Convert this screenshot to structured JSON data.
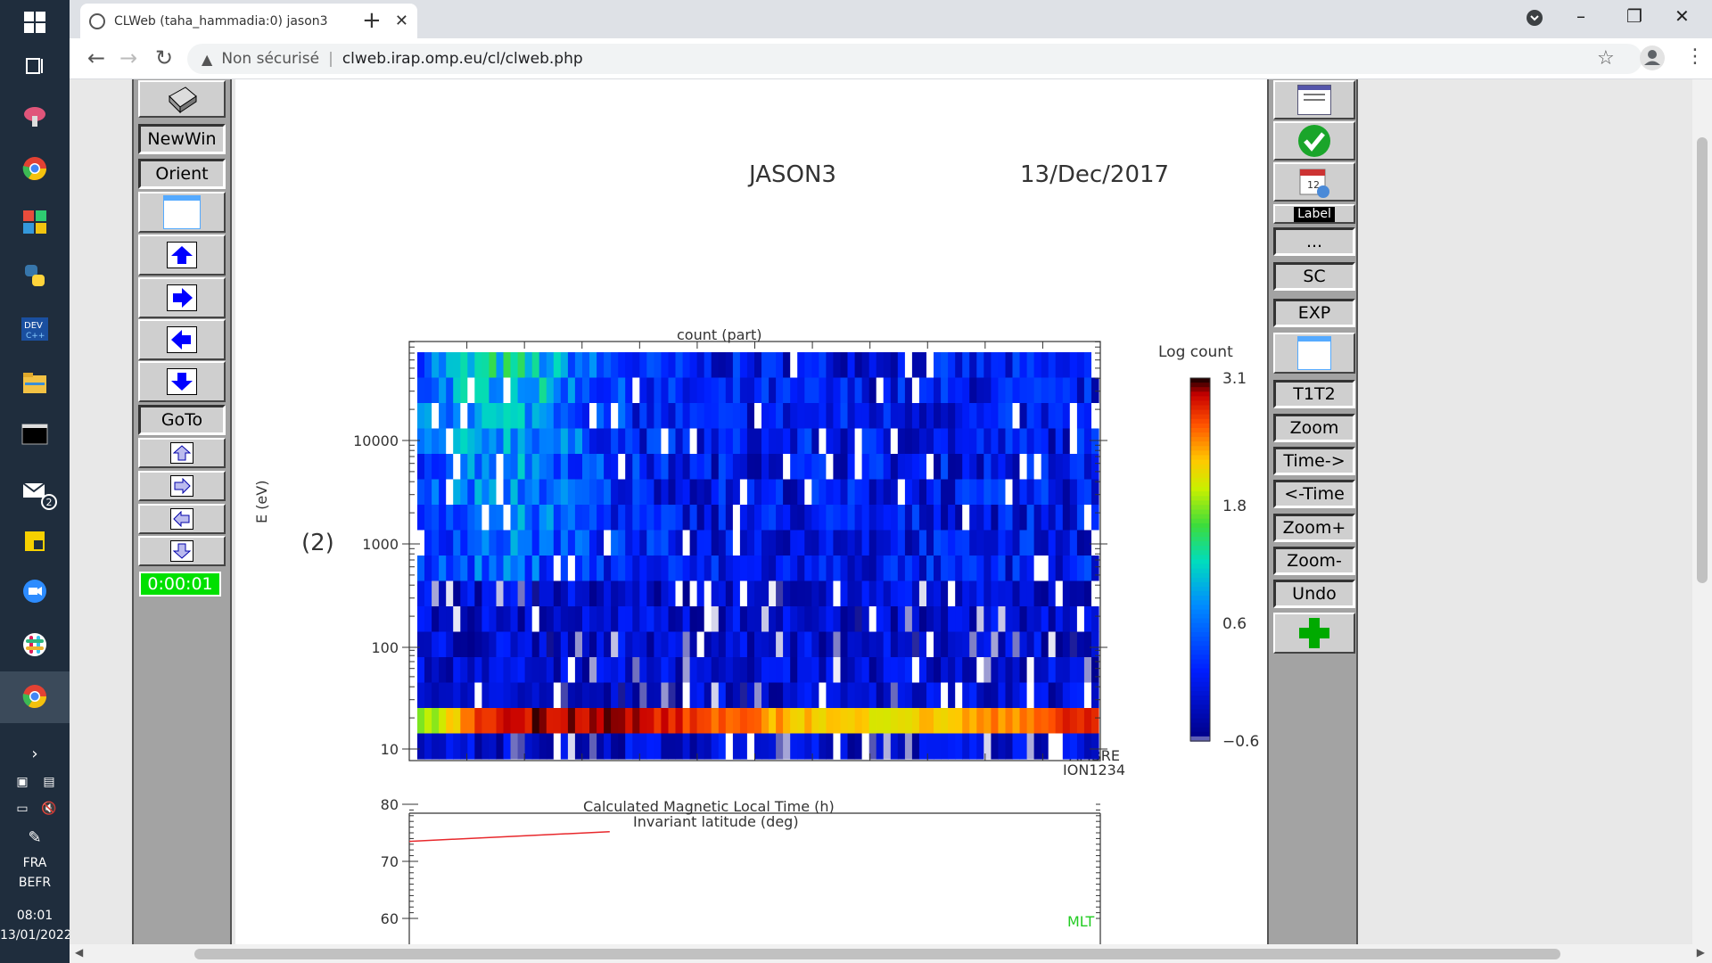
{
  "browser": {
    "tab_title": "CLWeb (taha_hammadia:0) jason3",
    "security_label": "Non sécurisé",
    "url": "clweb.irap.omp.eu/cl/clweb.php"
  },
  "taskbar": {
    "tray_lang": "FRA",
    "tray_layout": "BEFR",
    "time": "08:01",
    "date": "13/01/2022",
    "mail_badge": "2"
  },
  "left_panel": {
    "newwin_label": "NewWin",
    "orient_label": "Orient",
    "goto_label": "GoTo",
    "timer": "0:00:01"
  },
  "right_panel": {
    "label_label": "Label",
    "dots_label": "...",
    "sc_label": "SC",
    "exp_label": "EXP",
    "t1t2_label": "T1T2",
    "zoom_label": "Zoom",
    "time_fwd_label": "Time->",
    "time_back_label": "<-Time",
    "zoom_plus_label": "Zoom+",
    "zoom_minus_label": "Zoom-",
    "undo_label": "Undo"
  },
  "plot": {
    "mission": "JASON3",
    "date": "13/Dec/2017",
    "panel_title": "count (part)",
    "y_label": "E (eV)",
    "panel_index": "(2)",
    "instrument_line1": "AMBRE",
    "instrument_line2": "ION1234",
    "colorbar_title": "Log count",
    "lower_title1": "Calculated Magnetic Local Time (h)",
    "lower_title2": "Invariant latitude (deg)",
    "lower_legend": "MLT"
  },
  "chart_data": [
    {
      "type": "heatmap",
      "title": "count (part)",
      "ylabel": "E (eV)",
      "y_scale": "log",
      "y_ticks": [
        "10000",
        "1000",
        "100",
        "10"
      ],
      "colorbar_label": "Log count",
      "colorbar_ticks": [
        "3.1",
        "1.8",
        "0.6",
        "-0.6"
      ],
      "colorbar_range": [
        -0.6,
        3.1
      ],
      "colormap": "rainbow",
      "notes_values": {
        "high_energy_band_log_count": 1.2,
        "low_energy_band_log_count": 2.6,
        "background_log_count": 0.0
      }
    },
    {
      "type": "line",
      "title": "Invariant latitude (deg)",
      "y_ticks": [
        "80",
        "70",
        "60"
      ],
      "ylim": [
        60,
        80
      ],
      "series": [
        {
          "name": "Invariant latitude (deg)",
          "color": "#e8282c",
          "x": [
            0,
            0.29
          ],
          "values": [
            73.5,
            75.2
          ]
        }
      ]
    }
  ]
}
